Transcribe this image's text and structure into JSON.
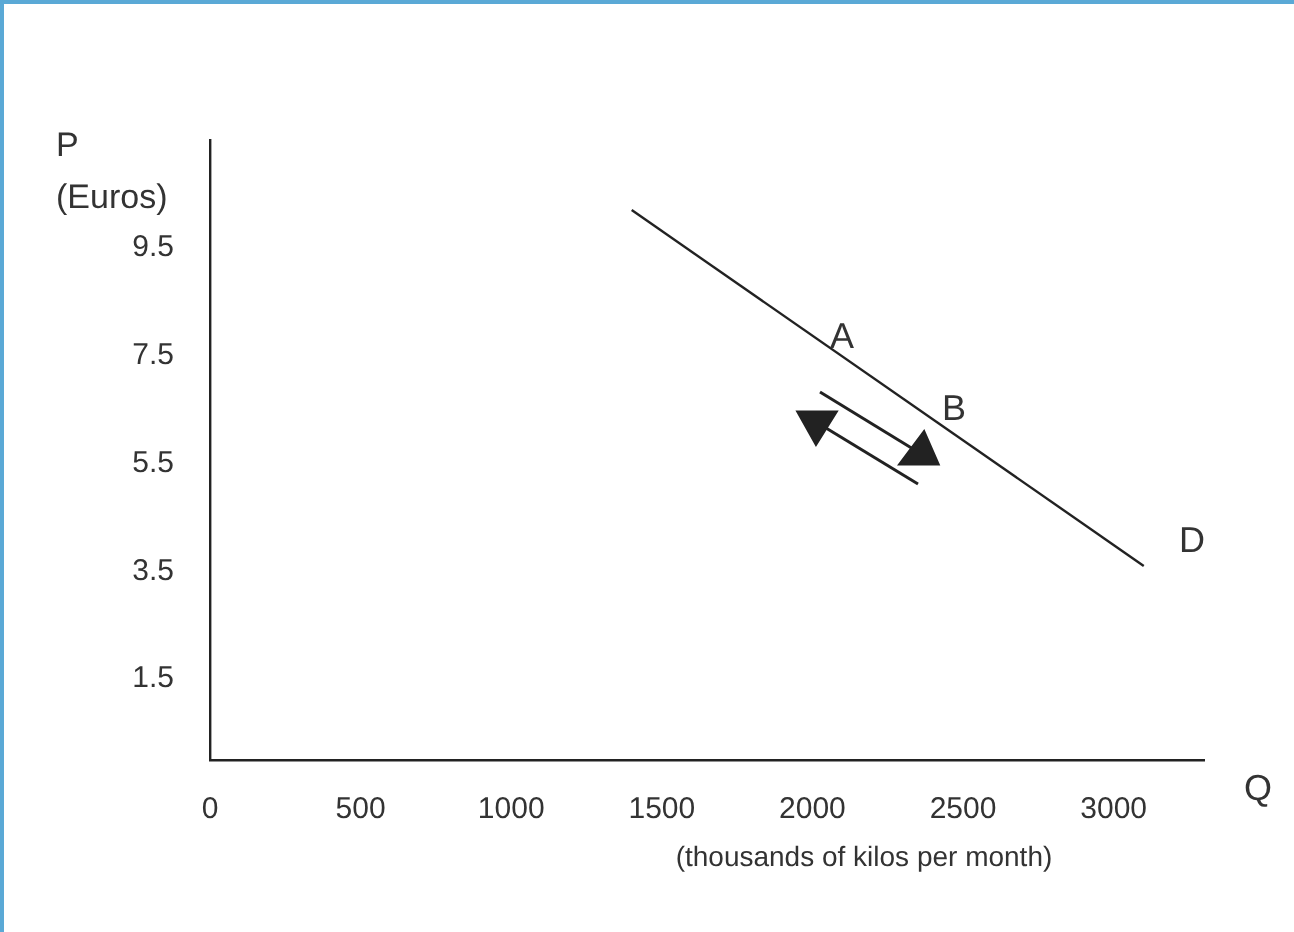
{
  "chart_data": {
    "type": "line",
    "xlabel": "Q",
    "ylabel": "P (Euros)",
    "x": [
      1400,
      3100
    ],
    "series": [
      {
        "color": "#222222",
        "values": [
          10.2,
          3.6
        ]
      }
    ],
    "xlim": [
      0,
      3300
    ],
    "xticks": [
      0,
      500,
      1000,
      1500,
      2000,
      2500,
      3000
    ],
    "ylim": [
      0,
      11.5
    ],
    "yticks": [
      1.5,
      3.5,
      5.5,
      7.5,
      9.5
    ],
    "grid": false,
    "legend": false,
    "marker": "none",
    "line_style": "solid",
    "annotations": [
      "A",
      "B",
      "D",
      "(thousands of kilos per month)"
    ]
  }
}
